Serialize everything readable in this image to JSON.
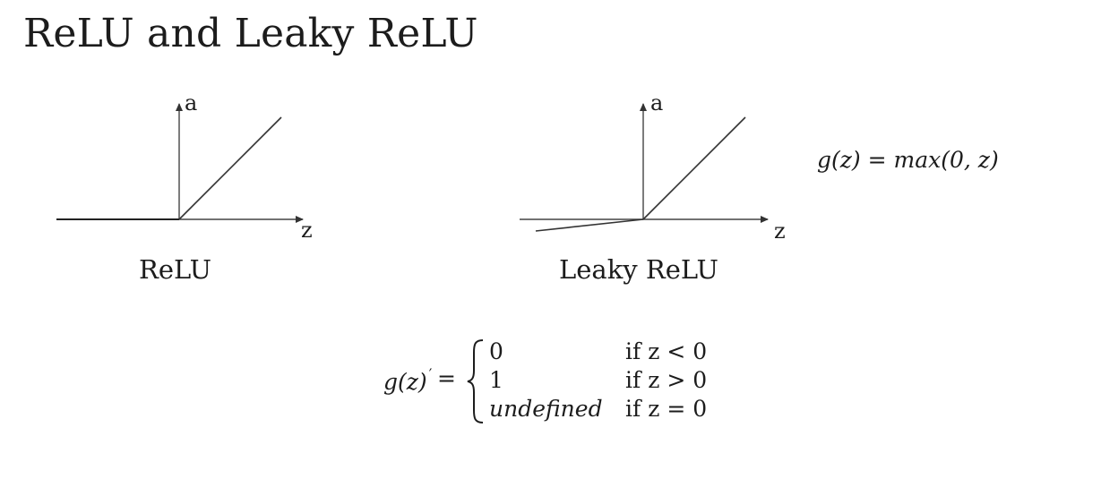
{
  "slide": {
    "title": "ReLU and Leaky ReLU"
  },
  "relu_plot": {
    "y_axis_label": "a",
    "x_axis_label": "z",
    "caption": "ReLU"
  },
  "leaky_relu_plot": {
    "y_axis_label": "a",
    "x_axis_label": "z",
    "caption": "Leaky ReLU"
  },
  "formulas": {
    "relu_definition": "g(z) = max(0, z)",
    "derivative": {
      "lhs": "g(z)",
      "prime": "′",
      "equals": "=",
      "cases": [
        {
          "value": "0",
          "condition": "if z < 0"
        },
        {
          "value": "1",
          "condition": "if z > 0"
        },
        {
          "value": "undefined",
          "condition": "if z = 0"
        }
      ]
    }
  },
  "colors": {
    "ink": "#1c1c1c",
    "axis": "#333333"
  }
}
